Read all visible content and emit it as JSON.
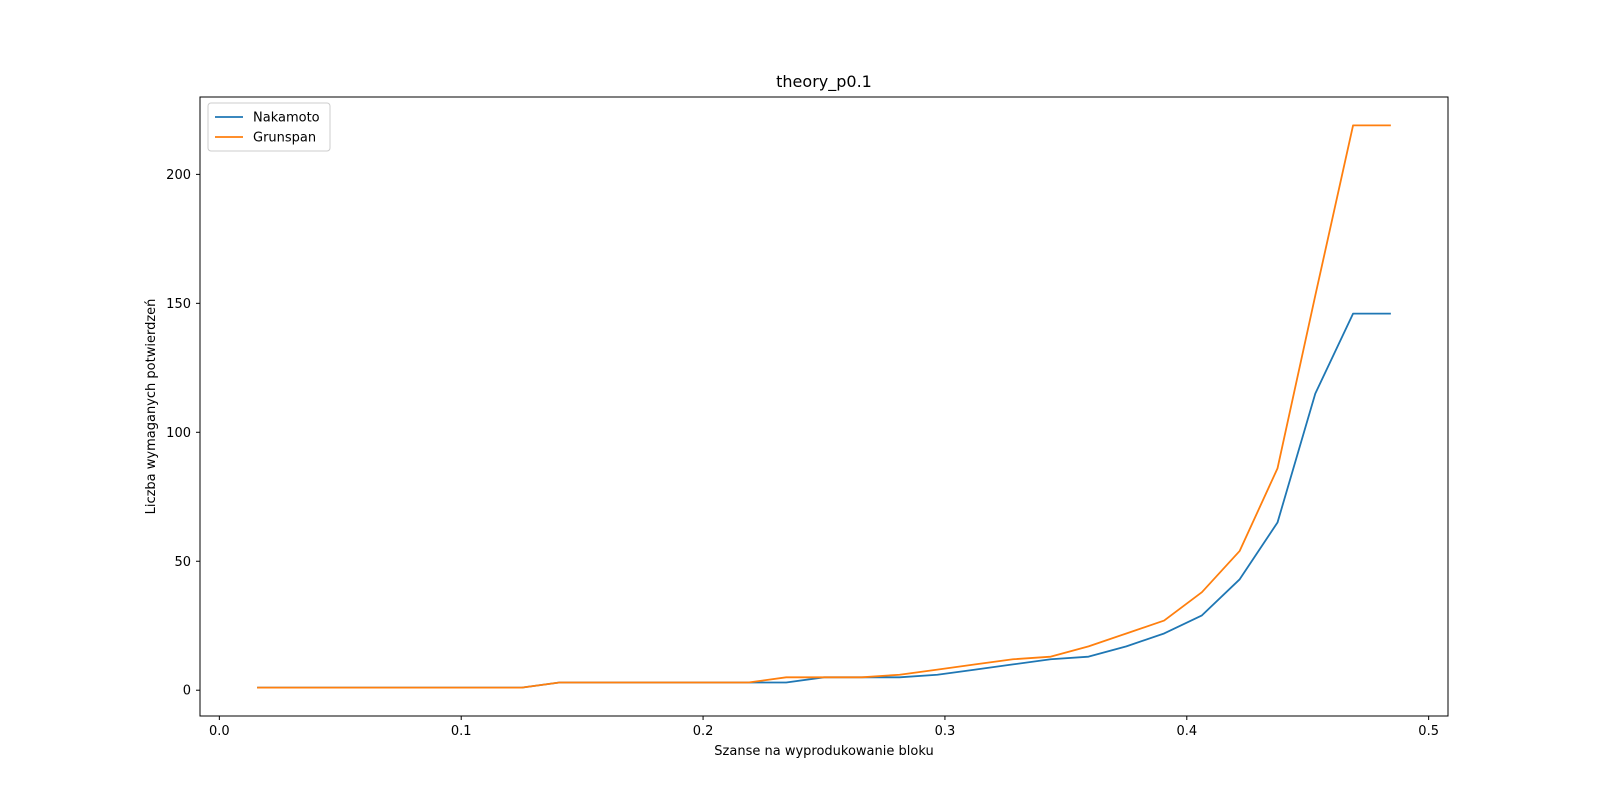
{
  "chart_data": {
    "type": "line",
    "title": "theory_p0.1",
    "xlabel": "Szanse na wyprodukowanie bloku",
    "ylabel": "Liczba wymaganych potwierdzeń",
    "xlim": [
      -0.008,
      0.508
    ],
    "ylim": [
      -10,
      230
    ],
    "xticks": [
      0.0,
      0.1,
      0.2,
      0.3,
      0.4,
      0.5
    ],
    "xtick_labels": [
      "0.0",
      "0.1",
      "0.2",
      "0.3",
      "0.4",
      "0.5"
    ],
    "yticks": [
      0,
      50,
      100,
      150,
      200
    ],
    "ytick_labels": [
      "0",
      "50",
      "100",
      "150",
      "200"
    ],
    "grid": false,
    "legend_position": "top-left",
    "x": [
      0.015625,
      0.03125,
      0.046875,
      0.0625,
      0.078125,
      0.09375,
      0.109375,
      0.125,
      0.140625,
      0.15625,
      0.171875,
      0.1875,
      0.203125,
      0.21875,
      0.234375,
      0.25,
      0.265625,
      0.28125,
      0.296875,
      0.3125,
      0.328125,
      0.34375,
      0.359375,
      0.375,
      0.390625,
      0.40625,
      0.421875,
      0.4375,
      0.453125,
      0.46875,
      0.484375
    ],
    "series": [
      {
        "name": "Nakamoto",
        "color": "#1f77b4",
        "values": [
          1,
          1,
          1,
          1,
          1,
          1,
          1,
          1,
          3,
          3,
          3,
          3,
          3,
          3,
          3,
          5,
          5,
          5,
          6,
          8,
          10,
          12,
          13,
          17,
          22,
          29,
          43,
          65,
          115,
          146,
          146
        ]
      },
      {
        "name": "Grunspan",
        "color": "#ff7f0e",
        "values": [
          1,
          1,
          1,
          1,
          1,
          1,
          1,
          1,
          3,
          3,
          3,
          3,
          3,
          3,
          5,
          5,
          5,
          6,
          8,
          10,
          12,
          13,
          17,
          22,
          27,
          38,
          54,
          86,
          153,
          219,
          219
        ]
      }
    ]
  }
}
